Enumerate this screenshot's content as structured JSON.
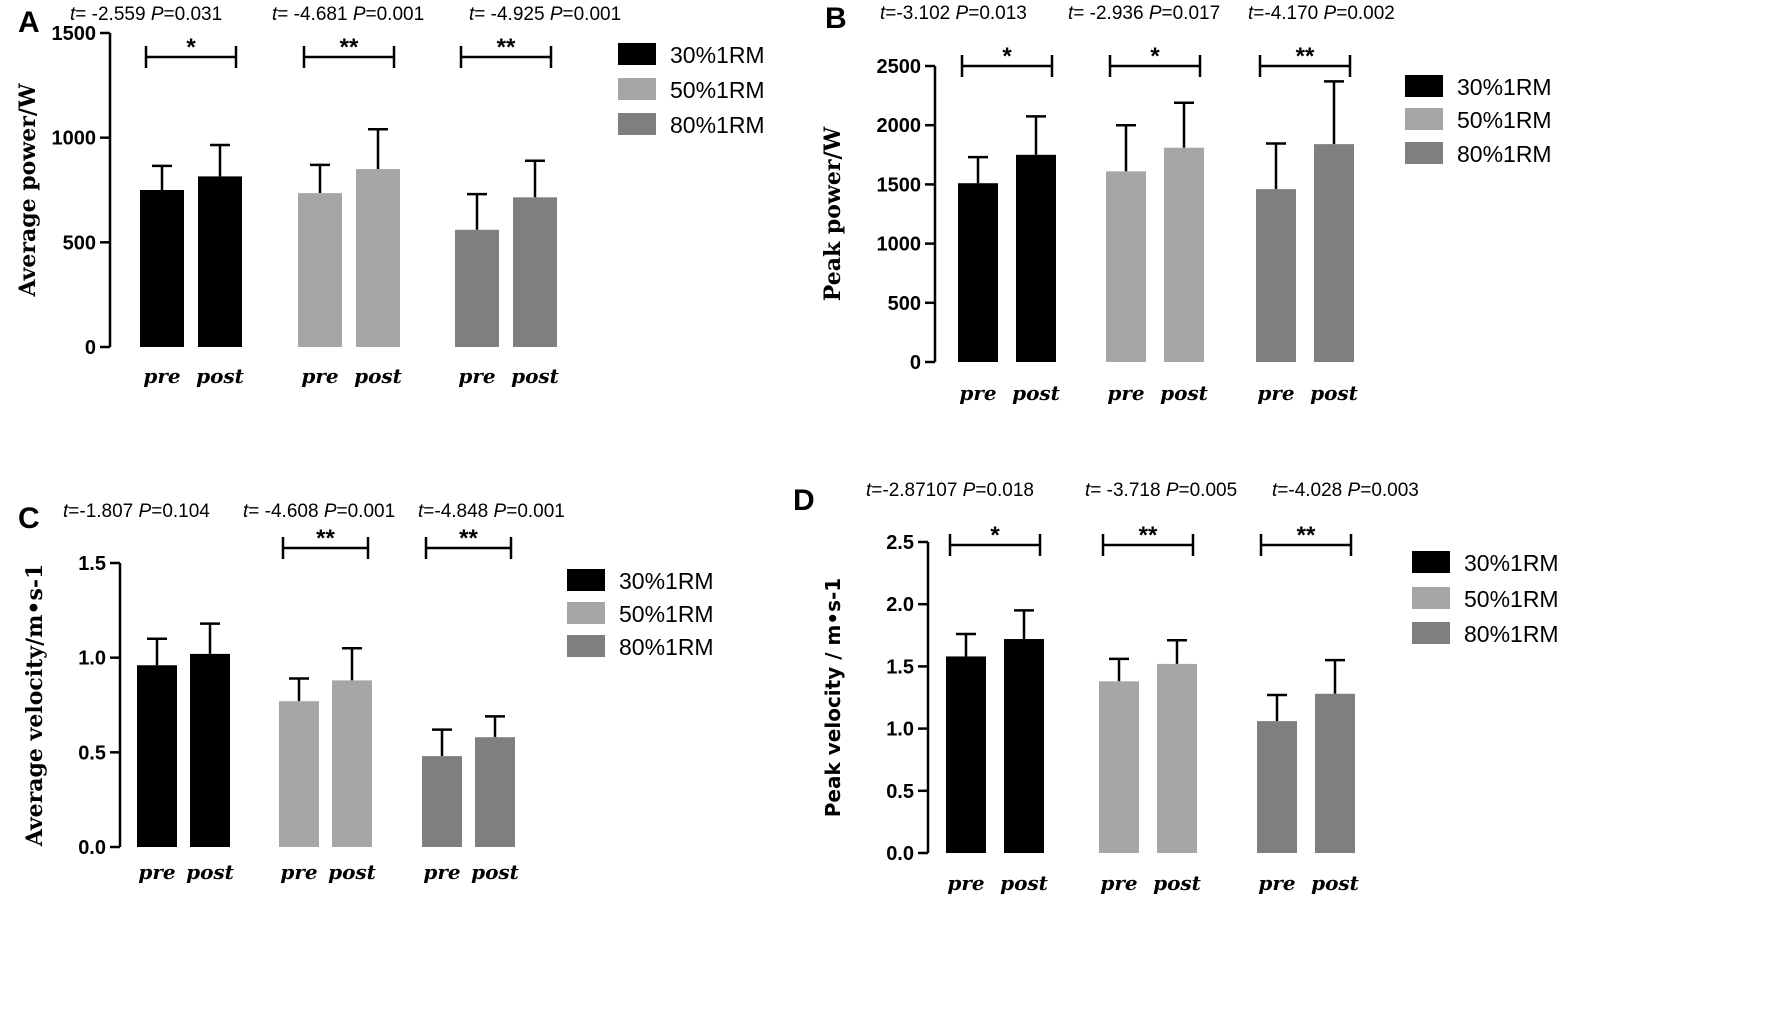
{
  "chart_data": [
    {
      "panel": "A",
      "type": "bar",
      "ylabel": "Average power/W",
      "ylim": [
        0,
        1500
      ],
      "yticks": [
        0,
        500,
        1000,
        1500
      ],
      "categories": [
        "pre",
        "post",
        "pre",
        "post",
        "pre",
        "post"
      ],
      "groups": [
        {
          "name": "30%1RM",
          "color": "#000000",
          "pre": {
            "mean": 750,
            "sd": 115
          },
          "post": {
            "mean": 815,
            "sd": 150
          },
          "sig": "*",
          "stat": "t= -2.559 P=0.031"
        },
        {
          "name": "50%1RM",
          "color": "#a6a6a8",
          "pre": {
            "mean": 735,
            "sd": 135
          },
          "post": {
            "mean": 850,
            "sd": 190
          },
          "sig": "**",
          "stat": "t= -4.681 P=0.001"
        },
        {
          "name": "80%1RM",
          "color": "#7f7f7f",
          "pre": {
            "mean": 560,
            "sd": 170
          },
          "post": {
            "mean": 715,
            "sd": 175
          },
          "sig": "**",
          "stat": "t= -4.925 P=0.001"
        }
      ],
      "legend": [
        "30%1RM",
        "50%1RM",
        "80%1RM"
      ]
    },
    {
      "panel": "B",
      "type": "bar",
      "ylabel": "Peak power/W",
      "ylim": [
        0,
        2500
      ],
      "yticks": [
        0,
        500,
        1000,
        1500,
        2000,
        2500
      ],
      "categories": [
        "pre",
        "post",
        "pre",
        "post",
        "pre",
        "post"
      ],
      "groups": [
        {
          "name": "30%1RM",
          "color": "#000000",
          "pre": {
            "mean": 1510,
            "sd": 220
          },
          "post": {
            "mean": 1750,
            "sd": 325
          },
          "sig": "*",
          "stat": "t=-3.102 P=0.013"
        },
        {
          "name": "50%1RM",
          "color": "#a6a6a8",
          "pre": {
            "mean": 1610,
            "sd": 390
          },
          "post": {
            "mean": 1810,
            "sd": 380
          },
          "sig": "*",
          "stat": "t= -2.936 P=0.017"
        },
        {
          "name": "80%1RM",
          "color": "#7f7f7f",
          "pre": {
            "mean": 1460,
            "sd": 385
          },
          "post": {
            "mean": 1840,
            "sd": 530
          },
          "sig": "**",
          "stat": "t=-4.170 P=0.002"
        }
      ],
      "legend": [
        "30%1RM",
        "50%1RM",
        "80%1RM"
      ]
    },
    {
      "panel": "C",
      "type": "bar",
      "ylabel": "Average velocity/m•s-1",
      "ylim": [
        0,
        1.5
      ],
      "yticks": [
        0.0,
        0.5,
        1.0,
        1.5
      ],
      "categories": [
        "pre",
        "post",
        "pre",
        "post",
        "pre",
        "post"
      ],
      "groups": [
        {
          "name": "30%1RM",
          "color": "#000000",
          "pre": {
            "mean": 0.96,
            "sd": 0.14
          },
          "post": {
            "mean": 1.02,
            "sd": 0.16
          },
          "sig": "",
          "stat": "t=-1.807 P=0.104"
        },
        {
          "name": "50%1RM",
          "color": "#a6a6a8",
          "pre": {
            "mean": 0.77,
            "sd": 0.12
          },
          "post": {
            "mean": 0.88,
            "sd": 0.17
          },
          "sig": "**",
          "stat": "t= -4.608 P=0.001"
        },
        {
          "name": "80%1RM",
          "color": "#7f7f7f",
          "pre": {
            "mean": 0.48,
            "sd": 0.14
          },
          "post": {
            "mean": 0.58,
            "sd": 0.11
          },
          "sig": "**",
          "stat": "t=-4.848 P=0.001"
        }
      ],
      "legend": [
        "30%1RM",
        "50%1RM",
        "80%1RM"
      ]
    },
    {
      "panel": "D",
      "type": "bar",
      "ylabel": "Peak velocity / m•s-1",
      "ylim": [
        0,
        2.5
      ],
      "yticks": [
        0.0,
        0.5,
        1.0,
        1.5,
        2.0,
        2.5
      ],
      "categories": [
        "pre",
        "post",
        "pre",
        "post",
        "pre",
        "post"
      ],
      "groups": [
        {
          "name": "30%1RM",
          "color": "#000000",
          "pre": {
            "mean": 1.58,
            "sd": 0.18
          },
          "post": {
            "mean": 1.72,
            "sd": 0.23
          },
          "sig": "*",
          "stat": "t=-2.87107 P=0.018"
        },
        {
          "name": "50%1RM",
          "color": "#a6a6a8",
          "pre": {
            "mean": 1.38,
            "sd": 0.18
          },
          "post": {
            "mean": 1.52,
            "sd": 0.19
          },
          "sig": "**",
          "stat": "t= -3.718 P=0.005"
        },
        {
          "name": "80%1RM",
          "color": "#7f7f7f",
          "pre": {
            "mean": 1.06,
            "sd": 0.21
          },
          "post": {
            "mean": 1.28,
            "sd": 0.27
          },
          "sig": "**",
          "stat": "t=-4.028 P=0.003"
        }
      ],
      "legend": [
        "30%1RM",
        "50%1RM",
        "80%1RM"
      ]
    }
  ]
}
